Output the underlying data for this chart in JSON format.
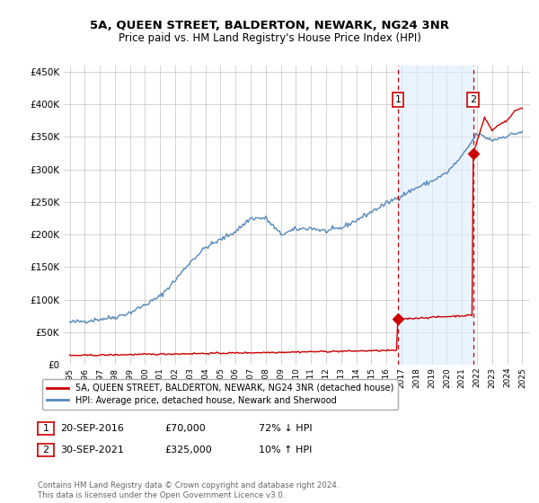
{
  "title": "5A, QUEEN STREET, BALDERTON, NEWARK, NG24 3NR",
  "subtitle": "Price paid vs. HM Land Registry's House Price Index (HPI)",
  "hpi_color": "#5588bb",
  "price_color": "#cc0000",
  "shade_color": "#ddeeff",
  "vline_color": "#cc0000",
  "background_color": "#ffffff",
  "grid_color": "#cccccc",
  "ylim": [
    0,
    460000
  ],
  "yticks": [
    0,
    50000,
    100000,
    150000,
    200000,
    250000,
    300000,
    350000,
    400000,
    450000
  ],
  "sale1_x": 2016.75,
  "sale1_y": 70000,
  "sale1_label": "1",
  "sale2_x": 2021.75,
  "sale2_y": 325000,
  "sale2_label": "2",
  "legend_entry1": "5A, QUEEN STREET, BALDERTON, NEWARK, NG24 3NR (detached house)",
  "legend_entry2": "HPI: Average price, detached house, Newark and Sherwood",
  "note1_label": "1",
  "note1_date": "20-SEP-2016",
  "note1_price": "£70,000",
  "note1_hpi": "72% ↓ HPI",
  "note2_label": "2",
  "note2_date": "30-SEP-2021",
  "note2_price": "£325,000",
  "note2_hpi": "10% ↑ HPI",
  "footer": "Contains HM Land Registry data © Crown copyright and database right 2024.\nThis data is licensed under the Open Government Licence v3.0.",
  "xlim_left": 1994.6,
  "xlim_right": 2025.5
}
